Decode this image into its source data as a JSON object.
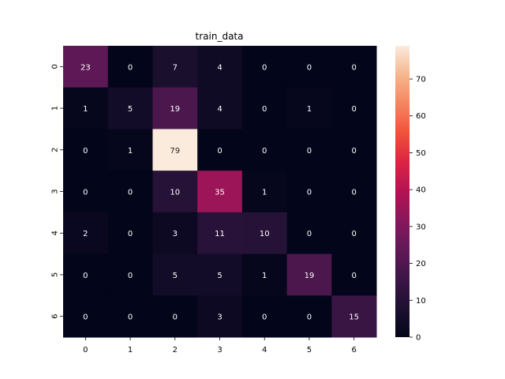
{
  "chart_data": {
    "type": "heatmap",
    "title": "train_data",
    "xlabel": "",
    "ylabel": "",
    "x_categories": [
      "0",
      "1",
      "2",
      "3",
      "4",
      "5",
      "6"
    ],
    "y_categories": [
      "0",
      "1",
      "2",
      "3",
      "4",
      "5",
      "6"
    ],
    "values": [
      [
        23,
        0,
        7,
        4,
        0,
        0,
        0
      ],
      [
        1,
        5,
        19,
        4,
        0,
        1,
        0
      ],
      [
        0,
        1,
        79,
        0,
        0,
        0,
        0
      ],
      [
        0,
        0,
        10,
        35,
        1,
        0,
        0
      ],
      [
        2,
        0,
        3,
        11,
        10,
        0,
        0
      ],
      [
        0,
        0,
        5,
        5,
        1,
        19,
        0
      ],
      [
        0,
        0,
        0,
        3,
        0,
        0,
        15
      ]
    ],
    "colorbar": {
      "min": 0,
      "max": 79,
      "ticks": [
        0,
        10,
        20,
        30,
        40,
        50,
        60,
        70
      ],
      "colormap": "rocket"
    },
    "annotations": true,
    "grid": false
  }
}
